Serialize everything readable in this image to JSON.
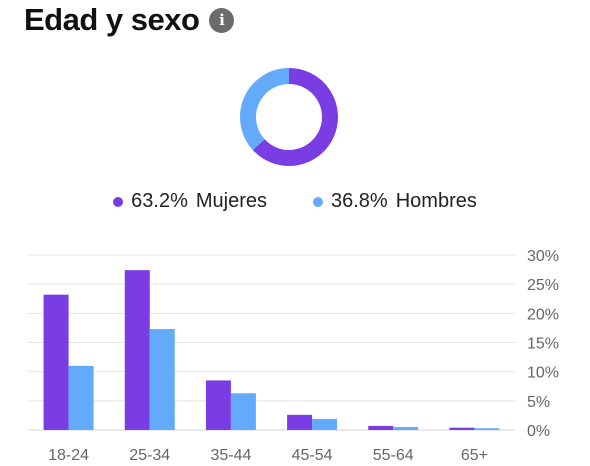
{
  "header": {
    "title": "Edad y sexo",
    "info_icon": "info-icon"
  },
  "colors": {
    "mujeres": "#7a3de4",
    "hombres": "#64aafa",
    "grid": "#e4e4e4",
    "axis_text": "#666666"
  },
  "legend": [
    {
      "pct": "63.2%",
      "label": "Mujeres"
    },
    {
      "pct": "36.8%",
      "label": "Hombres"
    }
  ],
  "chart_data": [
    {
      "type": "pie",
      "variant": "donut",
      "labels": [
        "Mujeres",
        "Hombres"
      ],
      "values": [
        63.2,
        36.8
      ]
    },
    {
      "type": "bar",
      "categories": [
        "18-24",
        "25-34",
        "35-44",
        "45-54",
        "55-64",
        "65+"
      ],
      "series": [
        {
          "name": "Mujeres",
          "values": [
            23.2,
            27.4,
            8.5,
            2.6,
            0.7,
            0.4
          ]
        },
        {
          "name": "Hombres",
          "values": [
            11.0,
            17.3,
            6.3,
            1.9,
            0.5,
            0.3
          ]
        }
      ],
      "ylim": [
        0,
        30
      ],
      "yticks": [
        "30%",
        "25%",
        "20%",
        "15%",
        "10%",
        "5%",
        "0%"
      ],
      "ytick_values": [
        30,
        25,
        20,
        15,
        10,
        5,
        0
      ],
      "y_axis_side": "right",
      "grid": true
    }
  ]
}
